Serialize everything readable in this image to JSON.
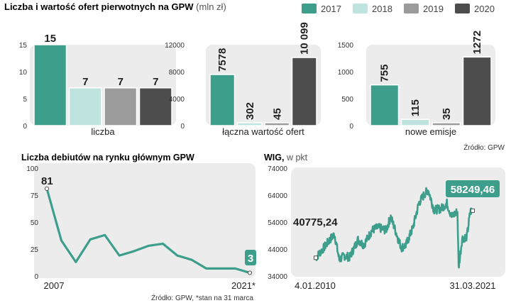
{
  "header": {
    "title_bold": "Liczba i wartość ofert pierwotnych na GPW",
    "title_unit": "(mln zł)"
  },
  "legend": [
    {
      "label": "2017",
      "color": "#3d9e8c"
    },
    {
      "label": "2018",
      "color": "#bfe3df"
    },
    {
      "label": "2019",
      "color": "#9b9b9b"
    },
    {
      "label": "2020",
      "color": "#4d4d4d"
    }
  ],
  "source_top": "Źródło: GPW",
  "bottom_left_title": "Liczba debiutów na rynku głównym GPW",
  "wig_title_bold": "WIG,",
  "wig_title_unit": "w pkt",
  "source_bottom": "Źródło: GPW, *stan na 31 marca",
  "chart_data": [
    {
      "type": "bar",
      "xlabel": "liczba",
      "categories": [
        "2017",
        "2018",
        "2019",
        "2020"
      ],
      "values": [
        15,
        7,
        7,
        7
      ],
      "value_labels": [
        "15",
        "7",
        "7",
        "7"
      ],
      "ylim": [
        0,
        15
      ],
      "yticks": [
        0,
        5,
        10,
        15
      ]
    },
    {
      "type": "bar",
      "xlabel": "łączna wartość ofert",
      "categories": [
        "2017",
        "2018",
        "2019",
        "2020"
      ],
      "values": [
        7578,
        302,
        45,
        10099
      ],
      "value_labels": [
        "7578",
        "302",
        "45",
        "10 099"
      ],
      "ylim": [
        0,
        12000
      ],
      "yticks": [
        0,
        4000,
        8000,
        12000
      ]
    },
    {
      "type": "bar",
      "xlabel": "nowe emisje",
      "categories": [
        "2017",
        "2018",
        "2019",
        "2020"
      ],
      "values": [
        755,
        115,
        35,
        1272
      ],
      "value_labels": [
        "755",
        "115",
        "35",
        "1272"
      ],
      "ylim": [
        0,
        1500
      ],
      "yticks": [
        0,
        500,
        1000,
        1500
      ]
    },
    {
      "type": "line",
      "title": "Liczba debiutów na rynku głównym GPW",
      "x": [
        2007,
        2008,
        2009,
        2010,
        2011,
        2012,
        2013,
        2014,
        2015,
        2016,
        2017,
        2018,
        2019,
        2020,
        2021
      ],
      "values": [
        81,
        33,
        13,
        34,
        38,
        19,
        23,
        28,
        30,
        19,
        15,
        7,
        7,
        7,
        3
      ],
      "xtick_labels": [
        "2007",
        "2021*"
      ],
      "ylim": [
        0,
        100
      ],
      "yticks": [
        0,
        25,
        50,
        75,
        100
      ],
      "start_label": "81",
      "end_label": "3"
    },
    {
      "type": "area",
      "title": "WIG, w pkt",
      "x_start": "4.01.2010",
      "x_end": "31.03.2021",
      "ylim": [
        34000,
        74000
      ],
      "yticks": [
        34000,
        44000,
        54000,
        64000,
        74000
      ],
      "start_value": "40775,24",
      "end_value": "58249,46",
      "x": [
        "2010-01",
        "2010-07",
        "2011-01",
        "2011-05",
        "2011-09",
        "2012-01",
        "2012-06",
        "2013-01",
        "2013-06",
        "2014-01",
        "2014-06",
        "2015-01",
        "2015-05",
        "2015-10",
        "2016-02",
        "2016-06",
        "2016-12",
        "2017-05",
        "2017-10",
        "2018-01",
        "2018-06",
        "2018-12",
        "2019-05",
        "2019-09",
        "2020-02",
        "2020-03",
        "2020-06",
        "2020-10",
        "2021-01",
        "2021-03"
      ],
      "values": [
        40775,
        44000,
        47500,
        49500,
        40000,
        41500,
        41000,
        47500,
        45500,
        51000,
        52000,
        51000,
        56000,
        49500,
        44500,
        45500,
        52000,
        61000,
        64500,
        66000,
        58500,
        59000,
        61000,
        56000,
        58000,
        37000,
        48000,
        48500,
        58000,
        58249
      ]
    }
  ]
}
